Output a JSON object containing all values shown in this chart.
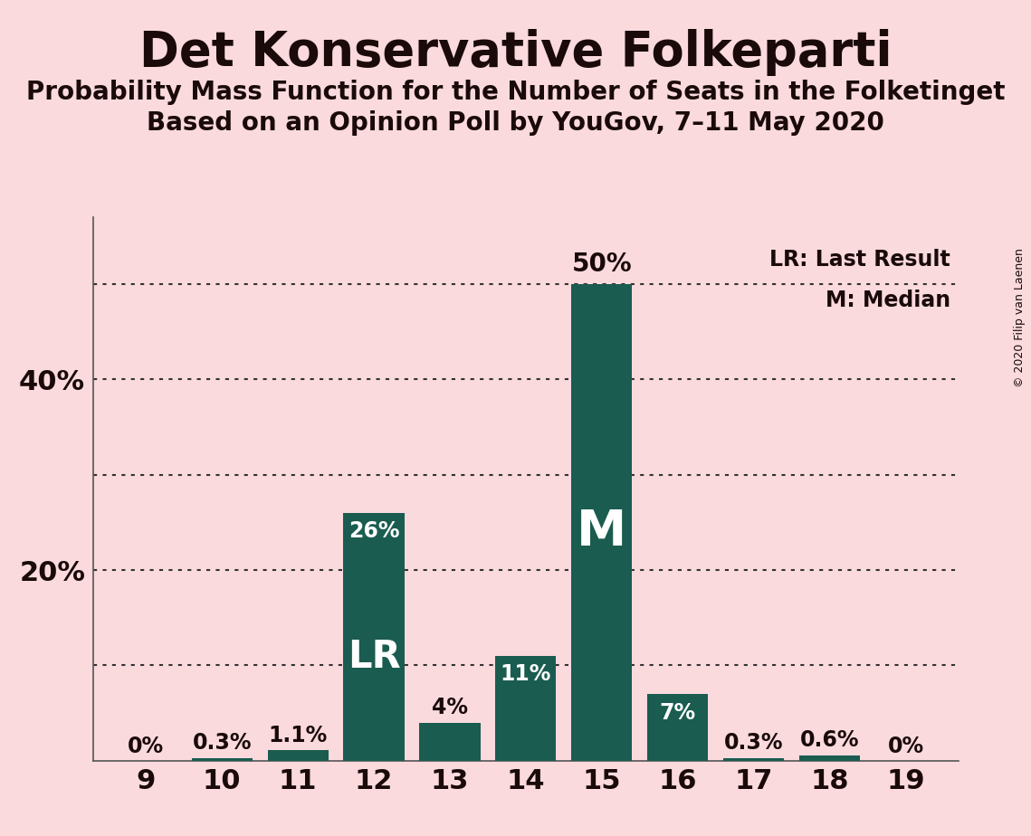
{
  "title": "Det Konservative Folkeparti",
  "subtitle1": "Probability Mass Function for the Number of Seats in the Folketinget",
  "subtitle2": "Based on an Opinion Poll by YouGov, 7–11 May 2020",
  "copyright": "© 2020 Filip van Laenen",
  "seats": [
    9,
    10,
    11,
    12,
    13,
    14,
    15,
    16,
    17,
    18,
    19
  ],
  "values": [
    0.0,
    0.3,
    1.1,
    26.0,
    4.0,
    11.0,
    50.0,
    7.0,
    0.3,
    0.6,
    0.0
  ],
  "bar_color": "#1a5c50",
  "background_color": "#fadadd",
  "text_color": "#1a0a0a",
  "lr_seat": 12,
  "median_seat": 15,
  "yticks": [
    0,
    10,
    20,
    30,
    40,
    50
  ],
  "ylim": [
    0,
    57
  ],
  "ylabel_shown": [
    20,
    40
  ],
  "dotted_line_color": "#333333",
  "legend_lr": "LR: Last Result",
  "legend_m": "M: Median",
  "bar_label_fontsize": 17,
  "axis_tick_fontsize": 22,
  "title_fontsize": 38,
  "subtitle_fontsize": 20,
  "inbar_fontsize": 26,
  "legend_fontsize": 17
}
